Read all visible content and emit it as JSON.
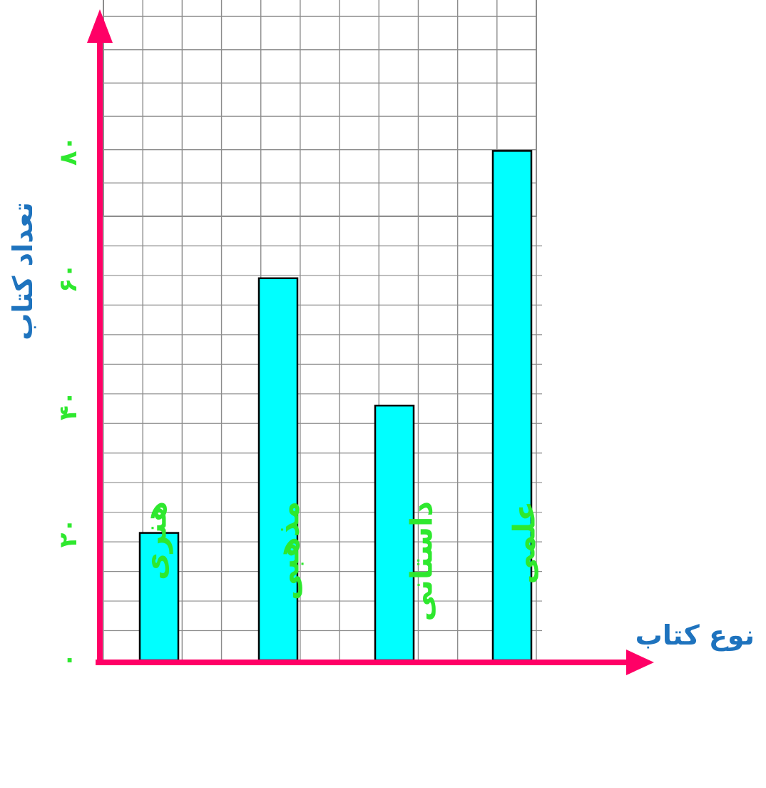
{
  "chart_data": {
    "type": "bar",
    "categories": [
      "هنری",
      "مذهبی",
      "داستانی",
      "علمی"
    ],
    "values": [
      20,
      60,
      40,
      80
    ],
    "xlabel": "نوع کتاب",
    "ylabel": "تعداد کتاب",
    "yticks": [
      0,
      20,
      40,
      60,
      80
    ],
    "ytick_labels": [
      "۰",
      "۲۰",
      "۴۰",
      "۶۰",
      "۸۰"
    ],
    "ylim": [
      0,
      100
    ],
    "grid": true,
    "colors": {
      "bar_fill": "#00FFFF",
      "bar_stroke": "#000000",
      "axis": "#FF0066",
      "tick_and_category_text": "#2EE82E",
      "axis_title_text": "#1E73BE",
      "grid": "#8C8C8C"
    }
  }
}
